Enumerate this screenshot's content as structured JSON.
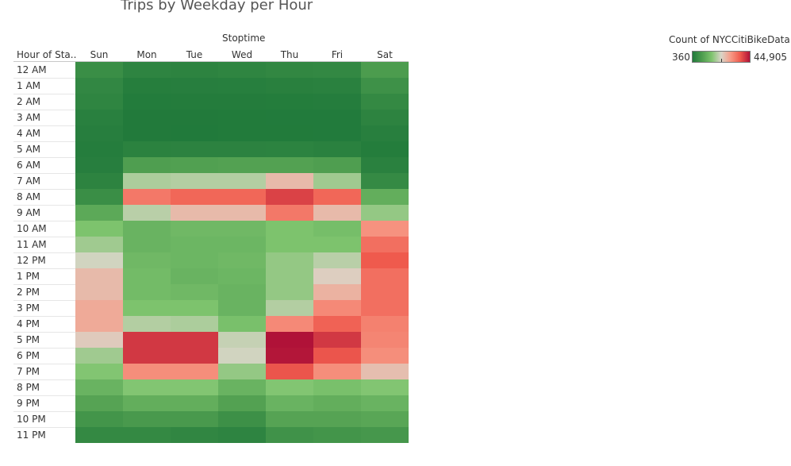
{
  "chart_data": {
    "type": "heatmap",
    "title": "Trips by Weekday per Hour",
    "column_title": "Stoptime",
    "row_header": "Hour of Sta..",
    "columns": [
      "Sun",
      "Mon",
      "Tue",
      "Wed",
      "Thu",
      "Fri",
      "Sat"
    ],
    "rows": [
      "12 AM",
      "1 AM",
      "2 AM",
      "3 AM",
      "4 AM",
      "5 AM",
      "6 AM",
      "7 AM",
      "8 AM",
      "9 AM",
      "10 AM",
      "11 AM",
      "12 PM",
      "1 PM",
      "2 PM",
      "3 PM",
      "4 PM",
      "5 PM",
      "6 PM",
      "7 PM",
      "8 PM",
      "9 PM",
      "10 PM",
      "11 PM"
    ],
    "values": [
      [
        4500,
        2500,
        2300,
        2600,
        3100,
        3400,
        7500
      ],
      [
        3200,
        1200,
        1300,
        1400,
        1600,
        1800,
        5200
      ],
      [
        2600,
        700,
        800,
        800,
        900,
        1000,
        3500
      ],
      [
        1700,
        450,
        450,
        500,
        550,
        600,
        2300
      ],
      [
        1300,
        450,
        400,
        500,
        500,
        550,
        1500
      ],
      [
        1000,
        2000,
        2100,
        2100,
        2200,
        1900,
        900
      ],
      [
        1300,
        8000,
        8300,
        8500,
        8600,
        8000,
        1800
      ],
      [
        2300,
        19000,
        19500,
        19500,
        26000,
        18000,
        3700
      ],
      [
        4500,
        34000,
        36000,
        36000,
        40000,
        36000,
        11000
      ],
      [
        10000,
        20000,
        26000,
        26000,
        34000,
        26000,
        17000
      ],
      [
        15000,
        12000,
        13000,
        13000,
        15000,
        14000,
        31000
      ],
      [
        18000,
        12000,
        12500,
        12500,
        15000,
        15000,
        35000
      ],
      [
        22000,
        13000,
        12500,
        13000,
        17000,
        20000,
        37500
      ],
      [
        26000,
        13500,
        12000,
        12500,
        17000,
        23500,
        35000
      ],
      [
        26000,
        13500,
        13000,
        12000,
        17000,
        27000,
        35000
      ],
      [
        28000,
        15000,
        15000,
        12000,
        19500,
        32000,
        35000
      ],
      [
        28000,
        19500,
        19000,
        14500,
        32000,
        36500,
        33000
      ],
      [
        24000,
        41000,
        41000,
        21000,
        44905,
        41000,
        32500
      ],
      [
        18000,
        41000,
        41000,
        22000,
        44500,
        38000,
        31500
      ],
      [
        15500,
        31500,
        31500,
        17000,
        38000,
        31500,
        25500
      ],
      [
        12000,
        15500,
        15500,
        12000,
        15500,
        14500,
        15500
      ],
      [
        9000,
        11000,
        11000,
        8500,
        12000,
        11000,
        12000
      ],
      [
        6000,
        7000,
        7000,
        5000,
        9000,
        9000,
        9500
      ],
      [
        3500,
        3500,
        3000,
        2500,
        5500,
        6000,
        6500
      ]
    ],
    "legend": {
      "title": "Count of NYCCitiBikeData..",
      "min_label": "360",
      "max_label": "44,905",
      "min": 360,
      "max": 44905,
      "colors": [
        "#217a3b",
        "#4e9d4f",
        "#7ec46e",
        "#d9d5c8",
        "#f79a86",
        "#ef5a4d",
        "#b01238"
      ]
    }
  }
}
